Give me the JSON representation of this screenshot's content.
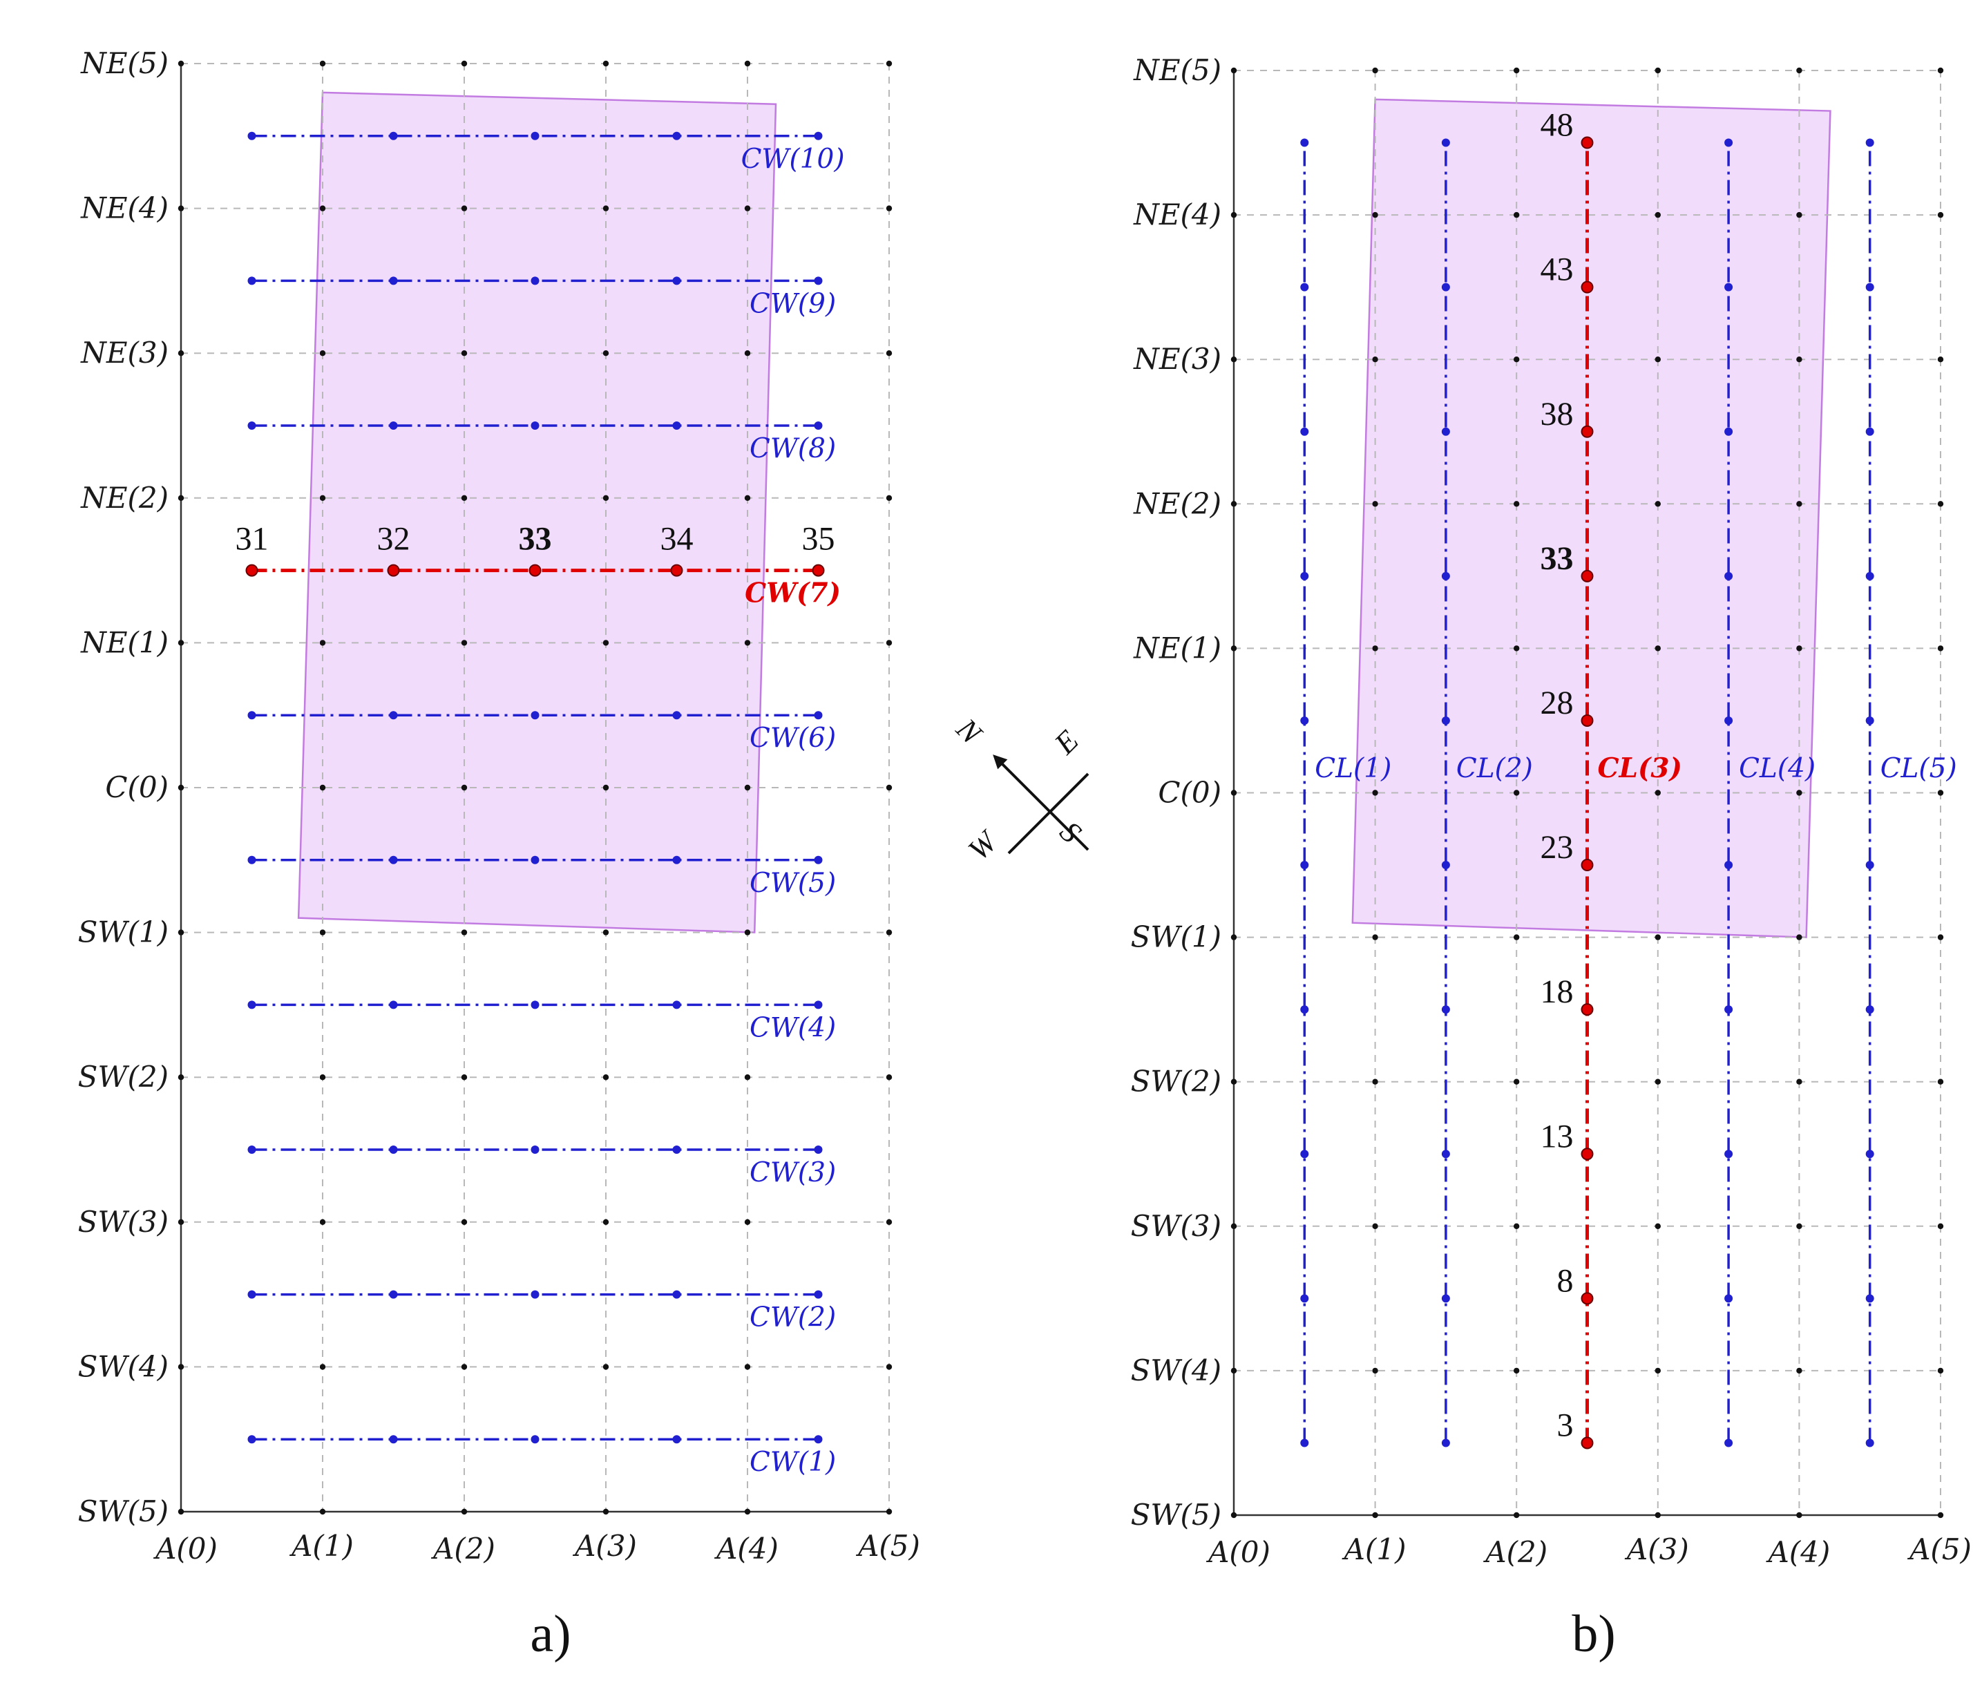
{
  "colors": {
    "line": "#2020d0",
    "highlight": "#e00000",
    "region_fill": "#f0d6fb",
    "region_stroke": "#c27be0",
    "ne5_label": "#7a1010"
  },
  "figure": {
    "panel_a_label": "a)",
    "panel_b_label": "b)",
    "compass": {
      "n": "N",
      "e": "E",
      "s": "S",
      "w": "W"
    }
  },
  "chart_data": [
    {
      "type": "diagram",
      "title": "a)",
      "x_ticks": [
        "A(0)",
        "A(1)",
        "A(2)",
        "A(3)",
        "A(4)",
        "A(5)"
      ],
      "y_ticks": [
        "SW(5)",
        "SW(4)",
        "SW(3)",
        "SW(2)",
        "SW(1)",
        "C(0)",
        "NE(1)",
        "NE(2)",
        "NE(3)",
        "NE(4)",
        "NE(5)"
      ],
      "xlim": [
        0,
        5
      ],
      "ylim": [
        -5,
        5
      ],
      "orientation": "horizontal",
      "line_positions": [
        0.5,
        1.5,
        2.5,
        3.5,
        4.5
      ],
      "line_coord": [
        -4.5,
        -3.5,
        -2.5,
        -1.5,
        -0.5,
        0.5,
        1.5,
        2.5,
        3.5,
        4.5
      ],
      "line_labels": [
        "CW(1)",
        "CW(2)",
        "CW(3)",
        "CW(4)",
        "CW(5)",
        "CW(6)",
        "CW(7)",
        "CW(8)",
        "CW(9)",
        "CW(10)"
      ],
      "highlight_index": 6,
      "point_numbers": [
        "31",
        "32",
        "33",
        "34",
        "35"
      ],
      "bold_number": "33",
      "region": [
        [
          1.0,
          4.8
        ],
        [
          4.2,
          4.72
        ],
        [
          4.05,
          -1.0
        ],
        [
          0.83,
          -0.9
        ]
      ]
    },
    {
      "type": "diagram",
      "title": "b)",
      "x_ticks": [
        "A(0)",
        "A(1)",
        "A(2)",
        "A(3)",
        "A(4)",
        "A(5)"
      ],
      "y_ticks": [
        "SW(5)",
        "SW(4)",
        "SW(3)",
        "SW(2)",
        "SW(1)",
        "C(0)",
        "NE(1)",
        "NE(2)",
        "NE(3)",
        "NE(4)",
        "NE(5)"
      ],
      "xlim": [
        0,
        5
      ],
      "ylim": [
        -5,
        5
      ],
      "orientation": "vertical",
      "line_positions": [
        -4.5,
        -3.5,
        -2.5,
        -1.5,
        -0.5,
        0.5,
        1.5,
        2.5,
        3.5,
        4.5
      ],
      "line_coord": [
        0.5,
        1.5,
        2.5,
        3.5,
        4.5
      ],
      "line_labels": [
        "CL(1)",
        "CL(2)",
        "CL(3)",
        "CL(4)",
        "CL(5)"
      ],
      "highlight_index": 2,
      "point_numbers": [
        "3",
        "8",
        "13",
        "18",
        "23",
        "28",
        "33",
        "38",
        "43",
        "48"
      ],
      "bold_number": "33",
      "region": [
        [
          1.0,
          4.8
        ],
        [
          4.22,
          4.72
        ],
        [
          4.05,
          -1.0
        ],
        [
          0.84,
          -0.9
        ]
      ]
    }
  ]
}
